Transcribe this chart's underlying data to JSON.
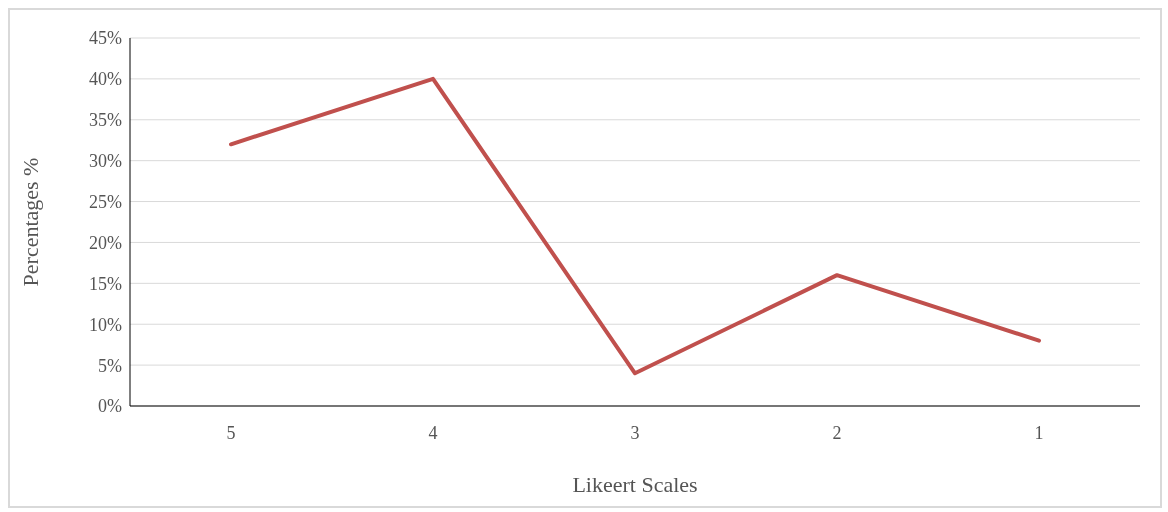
{
  "chart_data": {
    "type": "line",
    "xlabel": "Likeert Scales",
    "ylabel": "Percentages %",
    "categories": [
      "5",
      "4",
      "3",
      "2",
      "1"
    ],
    "series": [
      {
        "color": "#c0504d",
        "values": [
          32,
          40,
          4,
          16,
          8
        ]
      }
    ],
    "ylim": [
      0,
      45
    ],
    "yticks": [
      {
        "value": 0,
        "label": "0%"
      },
      {
        "value": 5,
        "label": "5%"
      },
      {
        "value": 10,
        "label": "10%"
      },
      {
        "value": 15,
        "label": "15%"
      },
      {
        "value": 20,
        "label": "20%"
      },
      {
        "value": 25,
        "label": "25%"
      },
      {
        "value": 30,
        "label": "30%"
      },
      {
        "value": 35,
        "label": "35%"
      },
      {
        "value": 40,
        "label": "40%"
      },
      {
        "value": 45,
        "label": "45%"
      }
    ],
    "grid": "y",
    "marker": "none",
    "line_style": "solid"
  }
}
